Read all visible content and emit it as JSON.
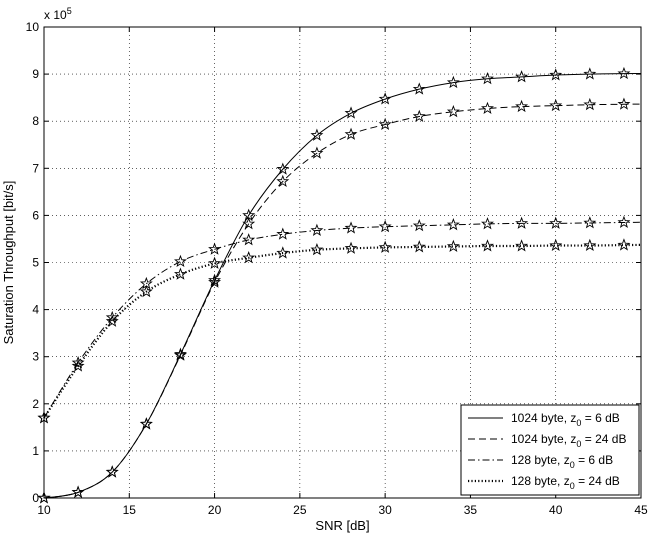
{
  "chart_data": {
    "type": "line",
    "xlabel": "SNR [dB]",
    "ylabel": "Saturation Throughput [bit/s]",
    "y_multiplier_label": "x 10",
    "y_multiplier_exponent": "5",
    "xlim": [
      10,
      45
    ],
    "ylim": [
      0,
      10
    ],
    "xticks": [
      "10",
      "15",
      "20",
      "25",
      "30",
      "35",
      "40",
      "45"
    ],
    "yticks": [
      "0",
      "1",
      "2",
      "3",
      "4",
      "5",
      "6",
      "7",
      "8",
      "9",
      "10"
    ],
    "grid": true,
    "legend_position": "bottom-right",
    "series": [
      {
        "label_main": "1024 byte, z",
        "label_sub": "0",
        "label_rest": " = 6 dB",
        "style": "solid",
        "x": [
          10,
          12,
          14,
          16,
          18,
          20,
          22,
          24,
          26,
          28,
          30,
          32,
          34,
          36,
          38,
          40,
          42,
          44
        ],
        "values": [
          0.0,
          0.12,
          0.55,
          1.57,
          3.05,
          4.62,
          6.0,
          6.98,
          7.7,
          8.17,
          8.47,
          8.68,
          8.82,
          8.9,
          8.94,
          8.98,
          9.0,
          9.01
        ]
      },
      {
        "label_main": "1024 byte, z",
        "label_sub": "0",
        "label_rest": " = 24 dB",
        "style": "dashed",
        "x": [
          10,
          12,
          14,
          16,
          18,
          20,
          22,
          24,
          26,
          28,
          30,
          32,
          34,
          36,
          38,
          40,
          42,
          44
        ],
        "values": [
          0.0,
          0.12,
          0.55,
          1.57,
          3.03,
          4.58,
          5.82,
          6.72,
          7.32,
          7.72,
          7.93,
          8.1,
          8.2,
          8.27,
          8.31,
          8.33,
          8.35,
          8.36
        ]
      },
      {
        "label_main": "128 byte, z",
        "label_sub": "0",
        "label_rest": " = 6 dB",
        "style": "dashdot",
        "x": [
          10,
          12,
          14,
          16,
          18,
          20,
          22,
          24,
          26,
          28,
          30,
          32,
          34,
          36,
          38,
          40,
          42,
          44
        ],
        "values": [
          1.7,
          2.87,
          3.83,
          4.55,
          5.02,
          5.28,
          5.48,
          5.6,
          5.68,
          5.73,
          5.76,
          5.78,
          5.8,
          5.82,
          5.83,
          5.83,
          5.84,
          5.85
        ]
      },
      {
        "label_main": "128 byte, z",
        "label_sub": "0",
        "label_rest": " = 24 dB",
        "style": "dotted",
        "x": [
          10,
          12,
          14,
          16,
          18,
          20,
          22,
          24,
          26,
          28,
          30,
          32,
          34,
          36,
          38,
          40,
          42,
          44
        ],
        "values": [
          1.7,
          2.8,
          3.75,
          4.38,
          4.75,
          4.98,
          5.1,
          5.2,
          5.27,
          5.3,
          5.32,
          5.33,
          5.34,
          5.35,
          5.35,
          5.36,
          5.36,
          5.37
        ]
      }
    ]
  }
}
